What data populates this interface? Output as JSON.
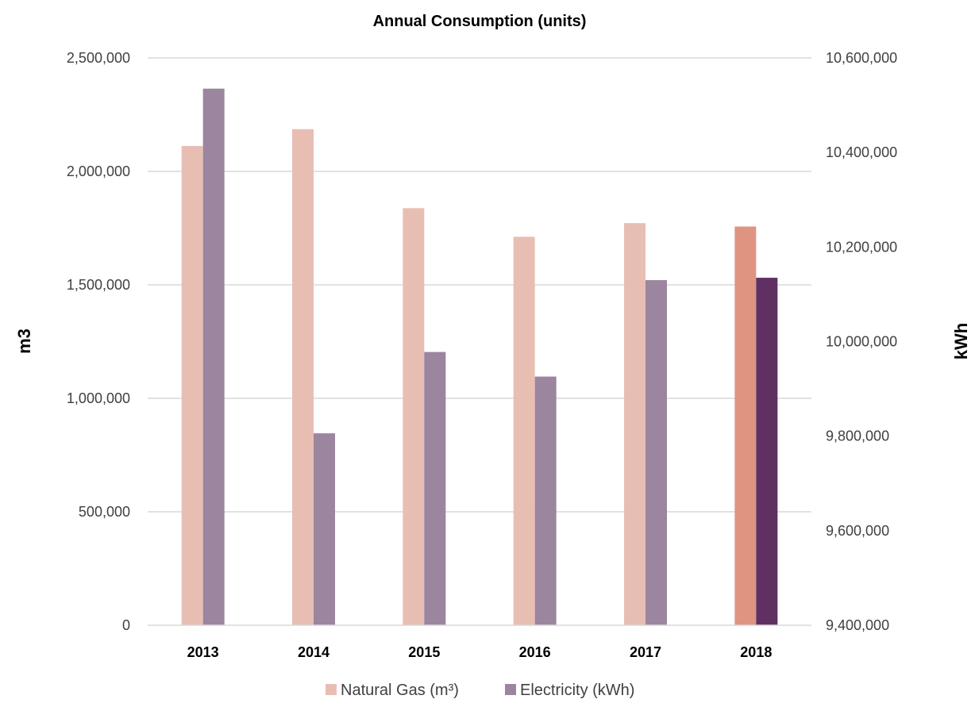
{
  "chart_data": {
    "type": "bar",
    "title": "Annual Consumption (units)",
    "categories": [
      "2013",
      "2014",
      "2015",
      "2016",
      "2017",
      "2018"
    ],
    "series": [
      {
        "name": "Natural Gas (m³)",
        "axis": "left",
        "color": "#e8beb3",
        "highlight_color": "#df9482",
        "values": [
          2112000,
          2186000,
          1838000,
          1712000,
          1772000,
          1757000
        ]
      },
      {
        "name": "Electricity (kWh)",
        "axis": "right",
        "color": "#9b859f",
        "highlight_color": "#5f3061",
        "values": [
          10535000,
          9806000,
          9978000,
          9926000,
          10130000,
          10135000
        ]
      }
    ],
    "highlight_category": "2018",
    "y_left": {
      "label": "m3",
      "ylim": [
        0,
        2500000
      ],
      "ticks": [
        "0",
        "500,000",
        "1,000,000",
        "1,500,000",
        "2,000,000",
        "2,500,000"
      ]
    },
    "y_right": {
      "label": "kWh",
      "ylim": [
        9400000,
        10600000
      ],
      "ticks": [
        "9,400,000",
        "9,600,000",
        "9,800,000",
        "10,000,000",
        "10,200,000",
        "10,400,000",
        "10,600,000"
      ]
    },
    "grid": true,
    "legend_position": "bottom"
  }
}
